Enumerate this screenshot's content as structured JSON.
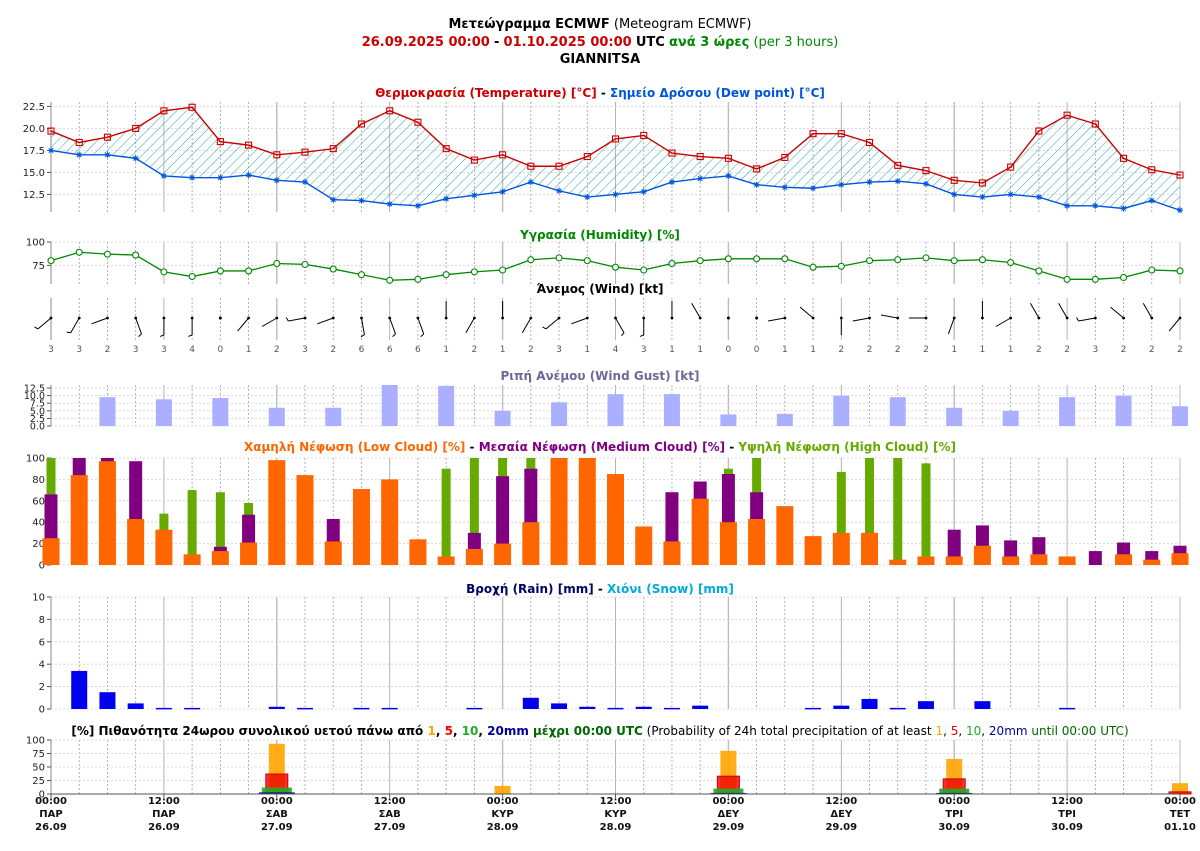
{
  "header": {
    "title_gr": "Μετεώγραμμα ECMWF",
    "title_en": "(Meteogram ECMWF)",
    "range_start": "26.09.2025 00:00",
    "range_sep": "-",
    "range_end": "01.10.2025 00:00",
    "range_utc": "UTC",
    "step_gr": "ανά 3 ώρες",
    "step_en": "(per 3 hours)",
    "location": "GIANNITSA"
  },
  "colors": {
    "temp": "#cc0000",
    "dew": "#0055dd",
    "hum": "#008800",
    "gust": "#aab0ff",
    "low": "#ff6600",
    "mid": "#800080",
    "high": "#66aa00",
    "rain": "#0000ee",
    "snow": "#00aadd",
    "title_gust": "#6a6a9a",
    "dark_navy": "#000066"
  },
  "titles": {
    "temp_a": "Θερμοκρασία (Temperature) [°C]",
    "temp_sep": " - ",
    "temp_b": "Σημείο Δρόσου (Dew point) [°C]",
    "hum": "Υγρασία (Humidity) [%]",
    "wind": "Άνεμος (Wind) [kt]",
    "gust": "Ριπή Ανέμου (Wind Gust) [kt]",
    "cloud_low": "Χαμηλή Νέφωση (Low Cloud) [%]",
    "cloud_sep1": " - ",
    "cloud_mid": "Μεσαία Νέφωση (Medium Cloud) [%]",
    "cloud_sep2": " - ",
    "cloud_high": "Υψηλή Νέφωση (High Cloud) [%]",
    "rain": "Βροχή (Rain) [mm]",
    "rain_sep": " - ",
    "snow": "Χιόνι (Snow) [mm]",
    "prob_a": "[%] Πιθανότητα 24ωρου συνολικού υετού πάνω από ",
    "prob_t1": "1",
    "prob_c1": ", ",
    "prob_t5": "5",
    "prob_c2": ", ",
    "prob_t10": "10",
    "prob_c3": ", ",
    "prob_t20": "20mm",
    "prob_b": " μέχρι 00:00 UTC",
    "prob_c": " (Probability of 24h total precipitation of at least ",
    "prob_e1": "1",
    "prob_e2": ", ",
    "prob_e5": "5",
    "prob_e3": ", ",
    "prob_e10": "10",
    "prob_e4": ", ",
    "prob_e20": "20mm",
    "prob_end": " until 00:00 UTC)"
  },
  "chart_data": [
    {
      "type": "line",
      "title": "Θερμοκρασία (Temperature) [°C] - Σημείο Δρόσου (Dew point) [°C]",
      "x_step_hours": 3,
      "ylim": [
        10.5,
        23
      ],
      "yticks": [
        "12.5",
        "15.0",
        "17.5",
        "20.0",
        "22.5"
      ],
      "series": [
        {
          "name": "Θερμοκρασία (Temperature)",
          "values": [
            19.7,
            18.4,
            19.0,
            20.0,
            22.0,
            22.4,
            18.5,
            18.1,
            17.0,
            17.3,
            17.7,
            20.5,
            22.0,
            20.7,
            17.7,
            16.4,
            17.0,
            15.7,
            15.7,
            16.8,
            18.8,
            19.2,
            17.2,
            16.8,
            16.6,
            15.4,
            16.7,
            19.4,
            19.4,
            18.4,
            15.8,
            15.2,
            14.1,
            13.8,
            15.6,
            19.7,
            21.5,
            20.5,
            16.6,
            15.3,
            14.7
          ]
        },
        {
          "name": "Σημείο Δρόσου (Dew point)",
          "values": [
            17.5,
            17.0,
            17.0,
            16.6,
            14.6,
            14.4,
            14.4,
            14.7,
            14.1,
            13.9,
            11.9,
            11.8,
            11.4,
            11.2,
            12.0,
            12.4,
            12.8,
            13.9,
            12.9,
            12.2,
            12.5,
            12.8,
            13.9,
            14.3,
            14.6,
            13.6,
            13.3,
            13.2,
            13.6,
            13.9,
            14.0,
            13.7,
            12.5,
            12.2,
            12.5,
            12.2,
            11.2,
            11.2,
            10.9,
            11.8,
            10.7
          ]
        }
      ]
    },
    {
      "type": "line",
      "title": "Υγρασία (Humidity) [%]",
      "ylim": [
        55,
        100
      ],
      "yticks": [
        "75",
        "100"
      ],
      "series": [
        {
          "name": "Υγρασία (Humidity)",
          "values": [
            80,
            89,
            87,
            86,
            68,
            63,
            69,
            69,
            77,
            76,
            71,
            65,
            59,
            60,
            65,
            68,
            70,
            81,
            83,
            80,
            73,
            70,
            77,
            80,
            82,
            82,
            82,
            73,
            74,
            80,
            81,
            83,
            80,
            81,
            78,
            69,
            60,
            60,
            62,
            70,
            69
          ]
        }
      ]
    },
    {
      "type": "wind_barbs",
      "title": "Άνεμος (Wind) [kt]",
      "speeds": [
        "3",
        "3",
        "2",
        "3",
        "3",
        "4",
        "0",
        "1",
        "2",
        "3",
        "2",
        "6",
        "6",
        "6",
        "1",
        "2",
        "1",
        "2",
        "3",
        "1",
        "4",
        "3",
        "1",
        "1",
        "0",
        "0",
        "1",
        "1",
        "2",
        "2",
        "2",
        "2",
        "1",
        "1",
        "1",
        "2",
        "2",
        "3",
        "2",
        "2",
        "2"
      ],
      "directions_deg": [
        230,
        210,
        250,
        160,
        180,
        180,
        0,
        220,
        240,
        260,
        250,
        170,
        160,
        160,
        0,
        210,
        0,
        210,
        230,
        250,
        150,
        180,
        0,
        330,
        0,
        250,
        260,
        310,
        180,
        260,
        280,
        270,
        200,
        0,
        240,
        330,
        330,
        260,
        310,
        330,
        220
      ]
    },
    {
      "type": "bar",
      "title": "Ριπή Ανέμου (Wind Gust) [kt]",
      "ylim": [
        0,
        13.5
      ],
      "yticks": [
        "0.0",
        "2.5",
        "5.0",
        "7.5",
        "10.0",
        "12.5"
      ],
      "values": [
        null,
        null,
        9.5,
        null,
        8.8,
        null,
        9.2,
        null,
        6.0,
        null,
        6.0,
        null,
        13.5,
        null,
        13.2,
        null,
        5.0,
        null,
        7.8,
        null,
        10.5,
        null,
        10.5,
        null,
        3.8,
        null,
        4.0,
        null,
        10.0,
        null,
        9.5,
        null,
        6.0,
        null,
        5.0,
        null,
        9.5,
        null,
        10.0,
        null,
        6.5
      ]
    },
    {
      "type": "bar",
      "title": "Χαμηλή Νέφωση (Low Cloud) [%] - Μεσαία Νέφωση (Medium Cloud) [%] - Υψηλή Νέφωση (High Cloud) [%]",
      "ylim": [
        0,
        100
      ],
      "yticks": [
        "0",
        "20",
        "40",
        "60",
        "80",
        "100"
      ],
      "series": [
        {
          "name": "Υψηλή Νέφωση (High Cloud)",
          "values": [
            100,
            0,
            0,
            0,
            48,
            70,
            68,
            58,
            0,
            0,
            0,
            0,
            0,
            0,
            90,
            100,
            100,
            100,
            98,
            0,
            0,
            0,
            0,
            0,
            90,
            100,
            0,
            0,
            87,
            100,
            100,
            95,
            0,
            0,
            0,
            0,
            0,
            0,
            0,
            0,
            0
          ]
        },
        {
          "name": "Μεσαία Νέφωση (Medium Cloud)",
          "values": [
            66,
            100,
            100,
            97,
            0,
            0,
            17,
            47,
            0,
            0,
            43,
            0,
            0,
            0,
            0,
            30,
            83,
            90,
            58,
            0,
            0,
            0,
            68,
            78,
            85,
            68,
            0,
            0,
            0,
            30,
            0,
            0,
            33,
            37,
            23,
            26,
            0,
            13,
            21,
            13,
            18
          ]
        },
        {
          "name": "Χαμηλή Νέφωση (Low Cloud)",
          "values": [
            25,
            84,
            97,
            43,
            33,
            10,
            13,
            21,
            98,
            84,
            22,
            71,
            80,
            24,
            8,
            15,
            20,
            40,
            100,
            100,
            85,
            36,
            22,
            62,
            40,
            43,
            55,
            27,
            30,
            30,
            5,
            8,
            8,
            18,
            8,
            10,
            8,
            0,
            10,
            5,
            11
          ]
        }
      ]
    },
    {
      "type": "bar",
      "title": "Βροχή (Rain) [mm] - Χιόνι (Snow) [mm]",
      "ylim": [
        0,
        10
      ],
      "yticks": [
        "0",
        "2",
        "4",
        "6",
        "8",
        "10"
      ],
      "series": [
        {
          "name": "Βροχή (Rain)",
          "values": [
            null,
            3.4,
            1.5,
            0.5,
            0.1,
            0.1,
            null,
            null,
            0.2,
            0.1,
            null,
            0.1,
            0.1,
            null,
            null,
            0.1,
            null,
            1.0,
            0.5,
            0.2,
            0.1,
            0.2,
            0.1,
            0.3,
            null,
            null,
            null,
            0.1,
            0.3,
            0.9,
            0.1,
            0.7,
            null,
            0.7,
            null,
            null,
            0.1,
            null,
            null,
            null,
            null
          ]
        }
      ]
    },
    {
      "type": "bar",
      "title": "[%] Πιθανότητα 24ωρου συνολικού υετού πάνω από 1, 5, 10, 20mm μέχρι 00:00 UTC (Probability of 24h total precipitation of at least 1, 5, 10, 20mm until 00:00 UTC)",
      "ylim": [
        0,
        100
      ],
      "yticks": [
        "0",
        "25",
        "50",
        "75",
        "100"
      ],
      "categories": [
        "27.09",
        "28.09",
        "29.09",
        "30.09",
        "01.10"
      ],
      "series": [
        {
          "name": "1",
          "values": [
            93,
            15,
            80,
            65,
            20
          ]
        },
        {
          "name": "5",
          "values": [
            37,
            0,
            33,
            28,
            4
          ]
        },
        {
          "name": "10",
          "values": [
            12,
            0,
            10,
            10,
            0
          ]
        },
        {
          "name": "20",
          "values": [
            3,
            0,
            2,
            2,
            0
          ]
        }
      ]
    }
  ],
  "x_axis": {
    "ticks": [
      {
        "time": "00:00",
        "day": "ΠΑΡ",
        "date": "26.09"
      },
      {
        "time": "12:00",
        "day": "ΠΑΡ",
        "date": "26.09"
      },
      {
        "time": "00:00",
        "day": "ΣΑΒ",
        "date": "27.09"
      },
      {
        "time": "12:00",
        "day": "ΣΑΒ",
        "date": "27.09"
      },
      {
        "time": "00:00",
        "day": "ΚΥΡ",
        "date": "28.09"
      },
      {
        "time": "12:00",
        "day": "ΚΥΡ",
        "date": "28.09"
      },
      {
        "time": "00:00",
        "day": "ΔΕΥ",
        "date": "29.09"
      },
      {
        "time": "12:00",
        "day": "ΔΕΥ",
        "date": "29.09"
      },
      {
        "time": "00:00",
        "day": "ΤΡΙ",
        "date": "30.09"
      },
      {
        "time": "12:00",
        "day": "ΤΡΙ",
        "date": "30.09"
      },
      {
        "time": "00:00",
        "day": "ΤΕΤ",
        "date": "01.10"
      }
    ]
  }
}
